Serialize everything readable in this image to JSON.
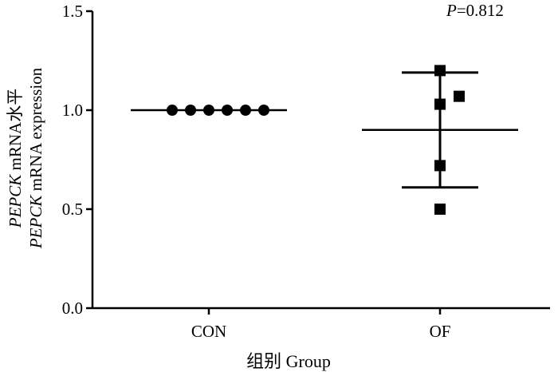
{
  "chart_data": {
    "type": "scatter",
    "title": "",
    "annotation": {
      "label_italic": "P",
      "label_rest": "=0.812"
    },
    "xlabel": "组别  Group",
    "ylabel_line1_italic": "PEPCK",
    "ylabel_line1_rest": " mRNA水平",
    "ylabel_line2_italic": "PEPCK",
    "ylabel_line2_rest": " mRNA expression",
    "categories": [
      "CON",
      "OF"
    ],
    "ylim": [
      0,
      1.5
    ],
    "yticks": [
      0.0,
      0.5,
      1.0,
      1.5
    ],
    "ytick_labels": [
      "0.0",
      "0.5",
      "1.0",
      "1.5"
    ],
    "series": [
      {
        "category": "CON",
        "marker": "circle",
        "points": [
          1.0,
          1.0,
          1.0,
          1.0,
          1.0,
          1.0
        ],
        "mean": 1.0,
        "sd_low": 1.0,
        "sd_high": 1.0
      },
      {
        "category": "OF",
        "marker": "square",
        "points": [
          1.2,
          1.03,
          1.07,
          0.72,
          0.5
        ],
        "mean": 0.9,
        "sd_low": 0.61,
        "sd_high": 1.19
      }
    ],
    "grid": false
  }
}
